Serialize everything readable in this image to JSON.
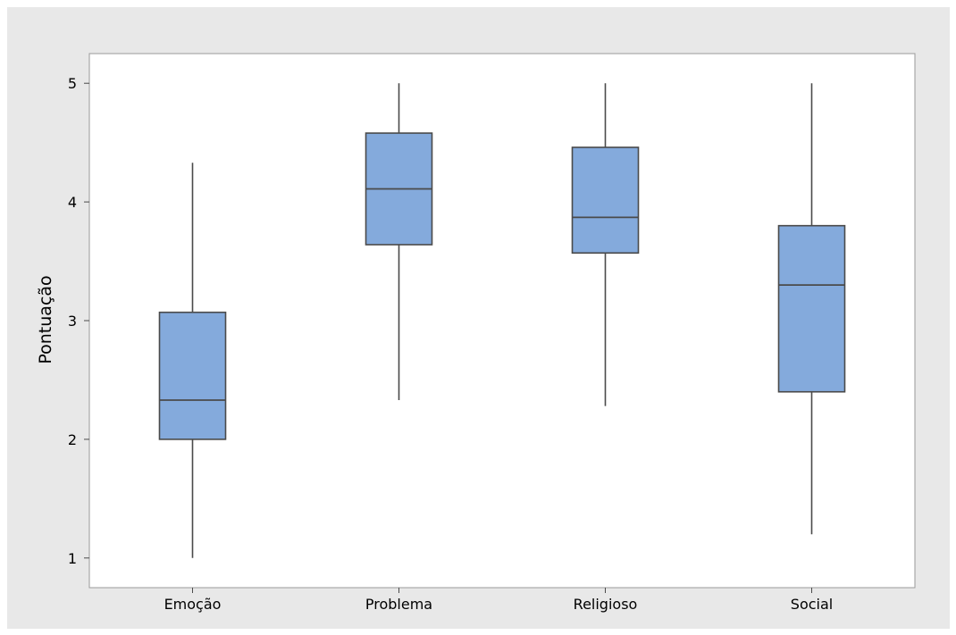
{
  "chart_data": {
    "type": "box",
    "title": "",
    "xlabel": "",
    "ylabel": "Pontuação",
    "categories": [
      "Emoção",
      "Problema",
      "Religioso",
      "Social"
    ],
    "boxes": [
      {
        "category": "Emoção",
        "min": 1.0,
        "q1": 2.0,
        "median": 2.33,
        "q3": 3.07,
        "max": 4.33
      },
      {
        "category": "Problema",
        "min": 2.33,
        "q1": 3.64,
        "median": 4.11,
        "q3": 4.58,
        "max": 5.0
      },
      {
        "category": "Religioso",
        "min": 2.28,
        "q1": 3.57,
        "median": 3.87,
        "q3": 4.46,
        "max": 5.0
      },
      {
        "category": "Social",
        "min": 1.2,
        "q1": 2.4,
        "median": 3.3,
        "q3": 3.8,
        "max": 5.0
      }
    ],
    "yticks": [
      1,
      2,
      3,
      4,
      5
    ],
    "ylim": [
      0.75,
      5.25
    ],
    "grid": false,
    "colors": {
      "box_fill": "#84aadc",
      "box_stroke": "#4a4a4a",
      "whisker": "#4a4a4a",
      "plot_background": "#ffffff",
      "figure_background": "#e8e8e8"
    }
  }
}
